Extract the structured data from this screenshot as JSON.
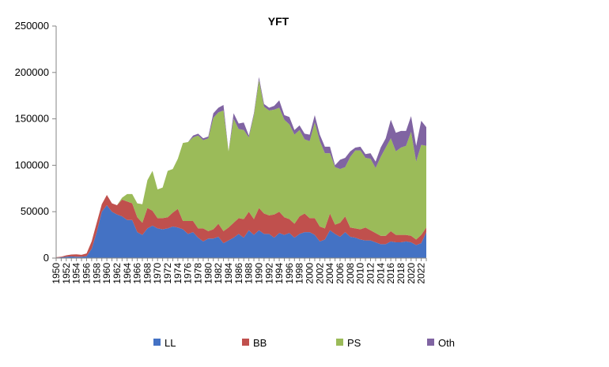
{
  "chart_data": {
    "type": "area",
    "stacked": true,
    "title": "YFT",
    "xlabel": "",
    "ylabel": "",
    "ylim": [
      0,
      250000
    ],
    "yticks": [
      "0",
      "50000",
      "100000",
      "150000",
      "200000",
      "250000"
    ],
    "xlim": [
      1950,
      2023
    ],
    "xtick_labels": [
      "1950",
      "1952",
      "1954",
      "1956",
      "1958",
      "1960",
      "1962",
      "1964",
      "1966",
      "1968",
      "1970",
      "1972",
      "1974",
      "1976",
      "1978",
      "1980",
      "1982",
      "1984",
      "1986",
      "1988",
      "1990",
      "1992",
      "1994",
      "1996",
      "1998",
      "2000",
      "2002",
      "2004",
      "2006",
      "2008",
      "2010",
      "2012",
      "2014",
      "2016",
      "2018",
      "2020",
      "2022"
    ],
    "grid": false,
    "legend_position": "bottom",
    "x": [
      1950,
      1951,
      1952,
      1953,
      1954,
      1955,
      1956,
      1957,
      1958,
      1959,
      1960,
      1961,
      1962,
      1963,
      1964,
      1965,
      1966,
      1967,
      1968,
      1969,
      1970,
      1971,
      1972,
      1973,
      1974,
      1975,
      1976,
      1977,
      1978,
      1979,
      1980,
      1981,
      1982,
      1983,
      1984,
      1985,
      1986,
      1987,
      1988,
      1989,
      1990,
      1991,
      1992,
      1993,
      1994,
      1995,
      1996,
      1997,
      1998,
      1999,
      2000,
      2001,
      2002,
      2003,
      2004,
      2005,
      2006,
      2007,
      2008,
      2009,
      2010,
      2011,
      2012,
      2013,
      2014,
      2015,
      2016,
      2017,
      2018,
      2019,
      2020,
      2021,
      2022,
      2023
    ],
    "series": [
      {
        "name": "LL",
        "color": "#4472C4",
        "values": [
          500,
          800,
          1500,
          1800,
          1500,
          1500,
          2000,
          10000,
          28000,
          50000,
          57000,
          50000,
          47000,
          45000,
          41000,
          41000,
          28000,
          25000,
          32000,
          35000,
          32000,
          31000,
          32000,
          34000,
          33000,
          31000,
          26000,
          28000,
          22000,
          18000,
          21000,
          21000,
          23000,
          16000,
          19000,
          22000,
          26000,
          22000,
          30000,
          25000,
          30000,
          26000,
          26000,
          22000,
          27000,
          25000,
          27000,
          22000,
          26000,
          28000,
          28000,
          25000,
          18000,
          20000,
          30000,
          26000,
          23000,
          28000,
          23000,
          22000,
          20000,
          19000,
          19000,
          17000,
          15000,
          15000,
          18000,
          17000,
          17000,
          18000,
          17000,
          14000,
          16000,
          28000
        ]
      },
      {
        "name": "BB",
        "color": "#C0504D",
        "values": [
          500,
          700,
          1500,
          2000,
          2500,
          2000,
          3000,
          8000,
          10000,
          8000,
          11000,
          9000,
          10000,
          18000,
          20000,
          18000,
          16000,
          13000,
          22000,
          16000,
          11000,
          12000,
          12000,
          15000,
          20000,
          9000,
          14000,
          12000,
          10000,
          14000,
          8000,
          10000,
          14000,
          13000,
          14000,
          16000,
          17000,
          20000,
          20000,
          17000,
          24000,
          22000,
          20000,
          25000,
          23000,
          19000,
          15000,
          15000,
          19000,
          20000,
          15000,
          18000,
          16000,
          12000,
          18000,
          10000,
          15000,
          17000,
          10000,
          10000,
          11000,
          14000,
          11000,
          10000,
          9000,
          9000,
          11000,
          8000,
          8000,
          7000,
          7000,
          6000,
          9000,
          5000
        ]
      },
      {
        "name": "PS",
        "color": "#9BBB59",
        "values": [
          0,
          0,
          0,
          0,
          0,
          0,
          0,
          0,
          0,
          0,
          0,
          0,
          0,
          2000,
          8000,
          10000,
          15000,
          20000,
          30000,
          43000,
          31000,
          33000,
          50000,
          47000,
          54000,
          84000,
          85000,
          90000,
          100000,
          95000,
          100000,
          120000,
          120000,
          130000,
          82000,
          112000,
          96000,
          96000,
          80000,
          112000,
          138000,
          115000,
          113000,
          113000,
          112000,
          105000,
          102000,
          96000,
          93000,
          80000,
          83000,
          103000,
          92000,
          81000,
          65000,
          62000,
          58000,
          53000,
          76000,
          84000,
          85000,
          75000,
          77000,
          70000,
          85000,
          95000,
          100000,
          90000,
          94000,
          96000,
          112000,
          84000,
          97000,
          88000
        ]
      },
      {
        "name": "Oth",
        "color": "#8064A2",
        "values": [
          0,
          0,
          0,
          0,
          0,
          0,
          0,
          0,
          0,
          0,
          0,
          0,
          0,
          0,
          0,
          0,
          0,
          0,
          0,
          0,
          0,
          0,
          0,
          0,
          0,
          0,
          0,
          2000,
          2000,
          2000,
          2000,
          5000,
          5000,
          6000,
          0,
          6000,
          6000,
          8000,
          2000,
          2000,
          3000,
          3000,
          3000,
          4000,
          8000,
          5000,
          8000,
          5000,
          5000,
          6000,
          7000,
          8000,
          7000,
          7000,
          7000,
          2000,
          10000,
          10000,
          6000,
          3000,
          4000,
          4000,
          6000,
          7000,
          10000,
          10000,
          20000,
          20000,
          18000,
          16000,
          17000,
          17000,
          26000,
          20000
        ]
      }
    ]
  }
}
